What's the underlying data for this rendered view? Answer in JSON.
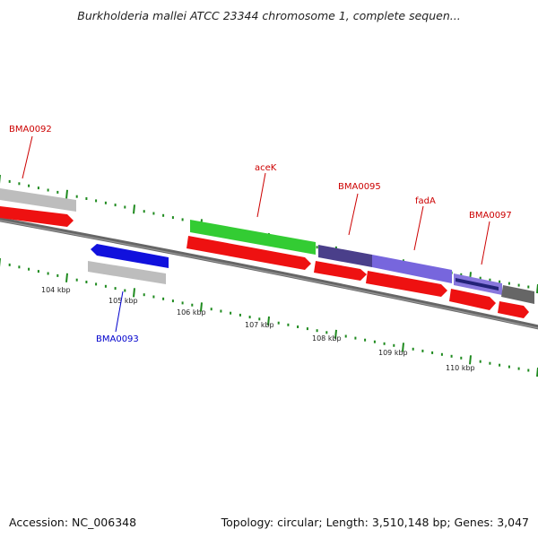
{
  "title": "Burkholderia mallei ATCC 23344 chromosome 1, complete sequen...",
  "footer": {
    "accession": "Accession: NC_006348",
    "summary": "Topology: circular; Length: 3,510,148 bp; Genes: 3,047"
  },
  "colors": {
    "backbone": "#777777",
    "tick": "#1e8a1e",
    "label_red": "#cc0000",
    "label_blue": "#0000cc",
    "cds": "#ee1111",
    "gene_gray": "#bbbbbb",
    "gene_blue": "#1111dd",
    "gene_green": "#33cc33",
    "gene_darkpurple": "#4a3f8a",
    "gene_purple": "#7766dd",
    "gene_navy": "#222277",
    "gene_darkgray": "#666666"
  },
  "scale_labels": [
    "104 kbp",
    "105 kbp",
    "106 kbp",
    "107 kbp",
    "108 kbp",
    "109 kbp",
    "110 kbp"
  ],
  "gene_labels": [
    {
      "text": "BMA0092",
      "color": "red"
    },
    {
      "text": "BMA0093",
      "color": "blue"
    },
    {
      "text": "aceK",
      "color": "red"
    },
    {
      "text": "BMA0095",
      "color": "red"
    },
    {
      "text": "fadA",
      "color": "red"
    },
    {
      "text": "BMA0097",
      "color": "red"
    }
  ]
}
